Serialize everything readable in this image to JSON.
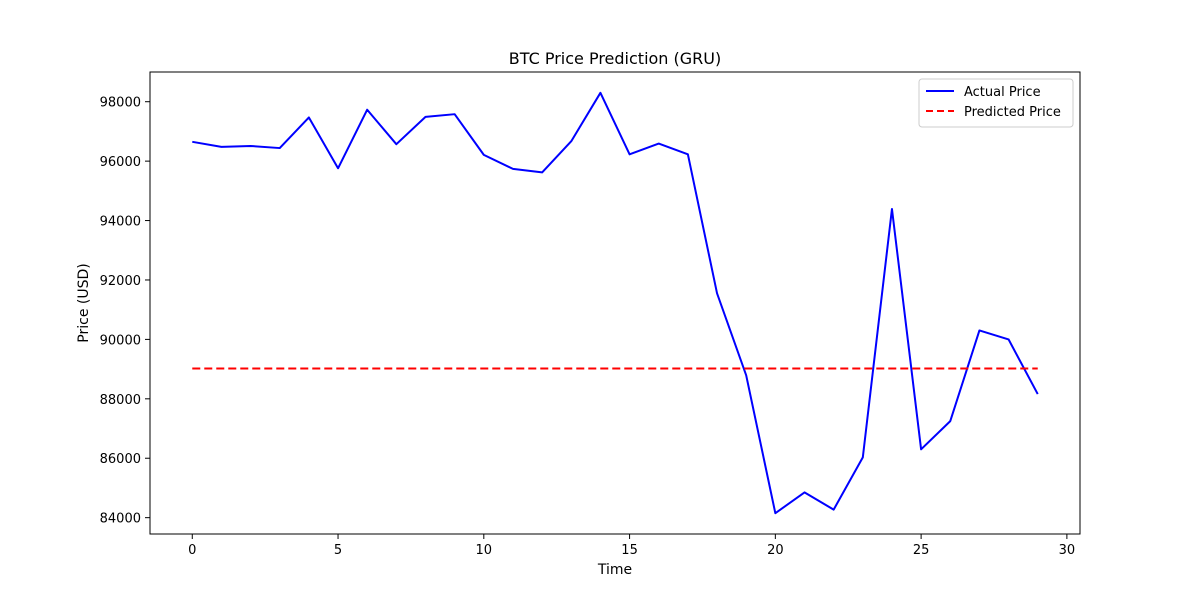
{
  "chart_data": {
    "type": "line",
    "title": "BTC Price Prediction (GRU)",
    "xlabel": "Time",
    "ylabel": "Price (USD)",
    "xlim": [
      -1.45,
      30.45
    ],
    "ylim": [
      83450,
      99000
    ],
    "xticks": [
      0,
      5,
      10,
      15,
      20,
      25,
      30
    ],
    "yticks": [
      84000,
      86000,
      88000,
      90000,
      92000,
      94000,
      96000,
      98000
    ],
    "grid": false,
    "legend_position": "top-right",
    "x": [
      0,
      1,
      2,
      3,
      4,
      5,
      6,
      7,
      8,
      9,
      10,
      11,
      12,
      13,
      14,
      15,
      16,
      17,
      18,
      19,
      20,
      21,
      22,
      23,
      24,
      25,
      26,
      27,
      28,
      29
    ],
    "series": [
      {
        "name": "Actual Price",
        "color": "#0000ff",
        "style": "solid",
        "values": [
          96650,
          96480,
          96510,
          96440,
          97470,
          95760,
          97730,
          96570,
          97490,
          97580,
          96210,
          95740,
          95620,
          96670,
          98300,
          96230,
          96590,
          96230,
          91550,
          88790,
          84150,
          84850,
          84270,
          86030,
          94390,
          86300,
          87250,
          90300,
          90000,
          88160
        ]
      },
      {
        "name": "Predicted Price",
        "color": "#ff0000",
        "style": "dashed",
        "values": [
          89020,
          89020,
          89020,
          89020,
          89020,
          89020,
          89020,
          89020,
          89020,
          89020,
          89020,
          89020,
          89020,
          89020,
          89020,
          89020,
          89020,
          89020,
          89020,
          89020,
          89020,
          89020,
          89020,
          89020,
          89020,
          89020,
          89020,
          89020,
          89020,
          89020
        ]
      }
    ]
  }
}
